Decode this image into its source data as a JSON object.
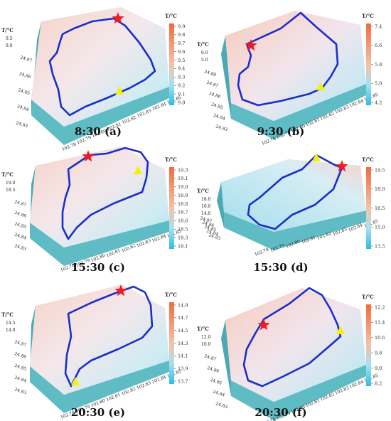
{
  "panels": [
    {
      "id": "a",
      "caption": "8:30 (a)",
      "z_label": "T/°C",
      "z_ticks": [
        "9.5",
        "9.0"
      ],
      "y_ticks": [
        "24.87",
        "24.86",
        "24.85",
        "24.84",
        "24.83"
      ],
      "x_ticks": [
        "102.78",
        "102.79",
        "102.80",
        "102.81",
        "102.82",
        "102.83",
        "102.84",
        "102.85"
      ],
      "colorbar_title": "T/°C",
      "colorbar_ticks": [
        "9.9",
        "9.8",
        "9.7",
        "9.6",
        "9.5",
        "9.4",
        "9.3",
        "9.2",
        "9.1",
        "9.0"
      ],
      "colors": {
        "high": "#f07a4a",
        "low": "#33c3e6",
        "base": "#5fbcc4"
      }
    },
    {
      "id": "b",
      "caption": "9:30 (b)",
      "z_label": "T/°C",
      "z_ticks": [
        "6.0",
        "5.0"
      ],
      "y_ticks": [
        "24.88",
        "24.87",
        "24.86",
        "24.85",
        "24.84",
        "24.83"
      ],
      "x_ticks": [
        "102.78",
        "102.79",
        "102.80",
        "102.81",
        "102.82",
        "102.83",
        "102.84",
        "102.85"
      ],
      "colorbar_title": "T/°C",
      "colorbar_ticks": [
        "7.4",
        "6.6",
        "5.8",
        "5.0",
        "4.2"
      ],
      "colors": {
        "high": "#f07a4a",
        "low": "#33c3e6",
        "base": "#5fbcc4"
      }
    },
    {
      "id": "c",
      "caption": "15:30 (c)",
      "z_label": "T/°C",
      "z_ticks": [
        "19.0",
        "18.5"
      ],
      "y_ticks": [
        "24.87",
        "24.86",
        "24.85",
        "24.84",
        "24.83"
      ],
      "x_ticks": [
        "102.78",
        "102.79",
        "102.80",
        "102.81",
        "102.82",
        "102.83",
        "102.84",
        "102.85"
      ],
      "colorbar_title": "T/°C",
      "colorbar_ticks": [
        "19.3",
        "19.1",
        "19.0",
        "18.9",
        "18.8",
        "18.7",
        "18.6",
        "18.5",
        "18.3",
        "18.1"
      ],
      "colors": {
        "high": "#f07a4a",
        "low": "#33c3e6",
        "base": "#5fbcc4"
      }
    },
    {
      "id": "d",
      "caption": "15:30 (d)",
      "z_label": "T/°C",
      "z_ticks": [
        "18.0",
        "16.0",
        "14.0"
      ],
      "y_ticks": [
        "24.87",
        "24.86",
        "24.85",
        "24.84",
        "24.83"
      ],
      "x_ticks": [
        "102.78",
        "102.79",
        "102.80",
        "102.81",
        "102.82",
        "102.83",
        "102.84",
        "102.85"
      ],
      "colorbar_title": "T/°C",
      "colorbar_ticks": [
        "19.5",
        "18.0",
        "16.5",
        "15.0",
        "13.5"
      ],
      "colors": {
        "high": "#f07a4a",
        "low": "#33c3e6",
        "base": "#5fbcc4"
      }
    },
    {
      "id": "e",
      "caption": "20:30 (e)",
      "z_label": "T/°C",
      "z_ticks": [
        "14.5",
        "14.0"
      ],
      "y_ticks": [
        "24.87",
        "24.86",
        "24.85",
        "24.84",
        "24.83"
      ],
      "x_ticks": [
        "102.78",
        "102.79",
        "102.80",
        "102.81",
        "102.82",
        "102.83",
        "102.84",
        "102.85"
      ],
      "colorbar_title": "T/°C",
      "colorbar_ticks": [
        "14.9",
        "14.7",
        "14.5",
        "14.3",
        "14.1",
        "13.9",
        "13.7"
      ],
      "colors": {
        "high": "#f07a4a",
        "low": "#33c3e6",
        "base": "#5fbcc4"
      }
    },
    {
      "id": "f",
      "caption": "20:30 (f)",
      "z_label": "T/°C",
      "z_ticks": [
        "12.0",
        "10.0"
      ],
      "y_ticks": [
        "24.87",
        "24.86",
        "24.85",
        "24.84",
        "24.83"
      ],
      "x_ticks": [
        "102.78",
        "102.79",
        "102.80",
        "102.81",
        "102.82",
        "102.83",
        "102.84",
        "102.85"
      ],
      "colorbar_title": "T/°C",
      "colorbar_ticks": [
        "12.2",
        "11.4",
        "10.6",
        "9.8",
        "9.0",
        "8.2"
      ],
      "colors": {
        "high": "#f07a4a",
        "low": "#33c3e6",
        "base": "#5fbcc4"
      }
    }
  ],
  "route_color": "#1a2fc7",
  "start_marker_color": "#ee1c24",
  "end_marker_color": "#f4f00c"
}
